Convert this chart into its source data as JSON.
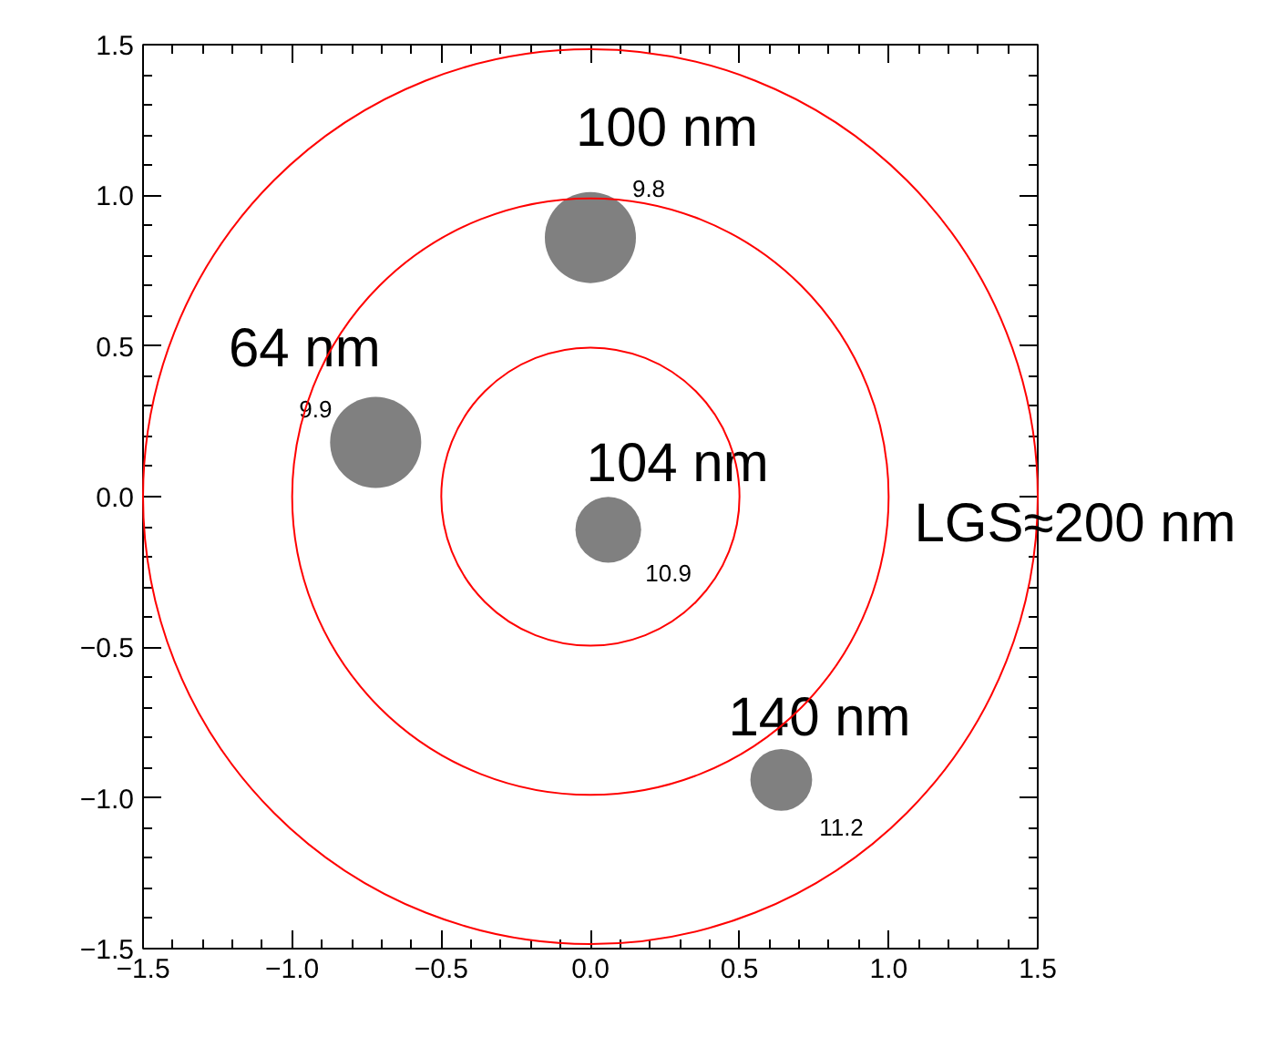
{
  "chart_data": {
    "type": "bubble",
    "xlim": [
      -1.5,
      1.5
    ],
    "ylim": [
      -1.5,
      1.5
    ],
    "xticks": [
      {
        "value": -1.5,
        "label": "−1.5"
      },
      {
        "value": -1.0,
        "label": "−1.0"
      },
      {
        "value": -0.5,
        "label": "−0.5"
      },
      {
        "value": 0.0,
        "label": "0.0"
      },
      {
        "value": 0.5,
        "label": "0.5"
      },
      {
        "value": 1.0,
        "label": "1.0"
      },
      {
        "value": 1.5,
        "label": "1.5"
      }
    ],
    "yticks": [
      {
        "value": -1.5,
        "label": "−1.5"
      },
      {
        "value": -1.0,
        "label": "−1.0"
      },
      {
        "value": -0.5,
        "label": "−0.5"
      },
      {
        "value": 0.0,
        "label": "0.0"
      },
      {
        "value": 0.5,
        "label": "0.5"
      },
      {
        "value": 1.0,
        "label": "1.0"
      },
      {
        "value": 1.5,
        "label": "1.5"
      }
    ],
    "grid": false,
    "series": [
      {
        "color": "#808080",
        "x": [
          0.0,
          -0.72,
          0.06,
          0.64
        ],
        "values": [
          0.86,
          0.18,
          -0.11,
          -0.94
        ],
        "sizes": [
          1,
          1,
          0.52,
          0.46
        ]
      }
    ],
    "annotations": [
      {
        "text": "100 nm",
        "x": 0.0,
        "y": 0.86
      },
      {
        "text": "9.8",
        "x": 0.0,
        "y": 0.86
      },
      {
        "text": "64 nm",
        "x": -0.72,
        "y": 0.18
      },
      {
        "text": "9.9",
        "x": -0.72,
        "y": 0.18
      },
      {
        "text": "104 nm",
        "x": 0.06,
        "y": -0.11
      },
      {
        "text": "10.9",
        "x": 0.06,
        "y": -0.11
      },
      {
        "text": "140 nm",
        "x": 0.64,
        "y": -0.94
      },
      {
        "text": "11.2",
        "x": 0.64,
        "y": -0.94
      },
      "LGS≈200 nm"
    ]
  }
}
